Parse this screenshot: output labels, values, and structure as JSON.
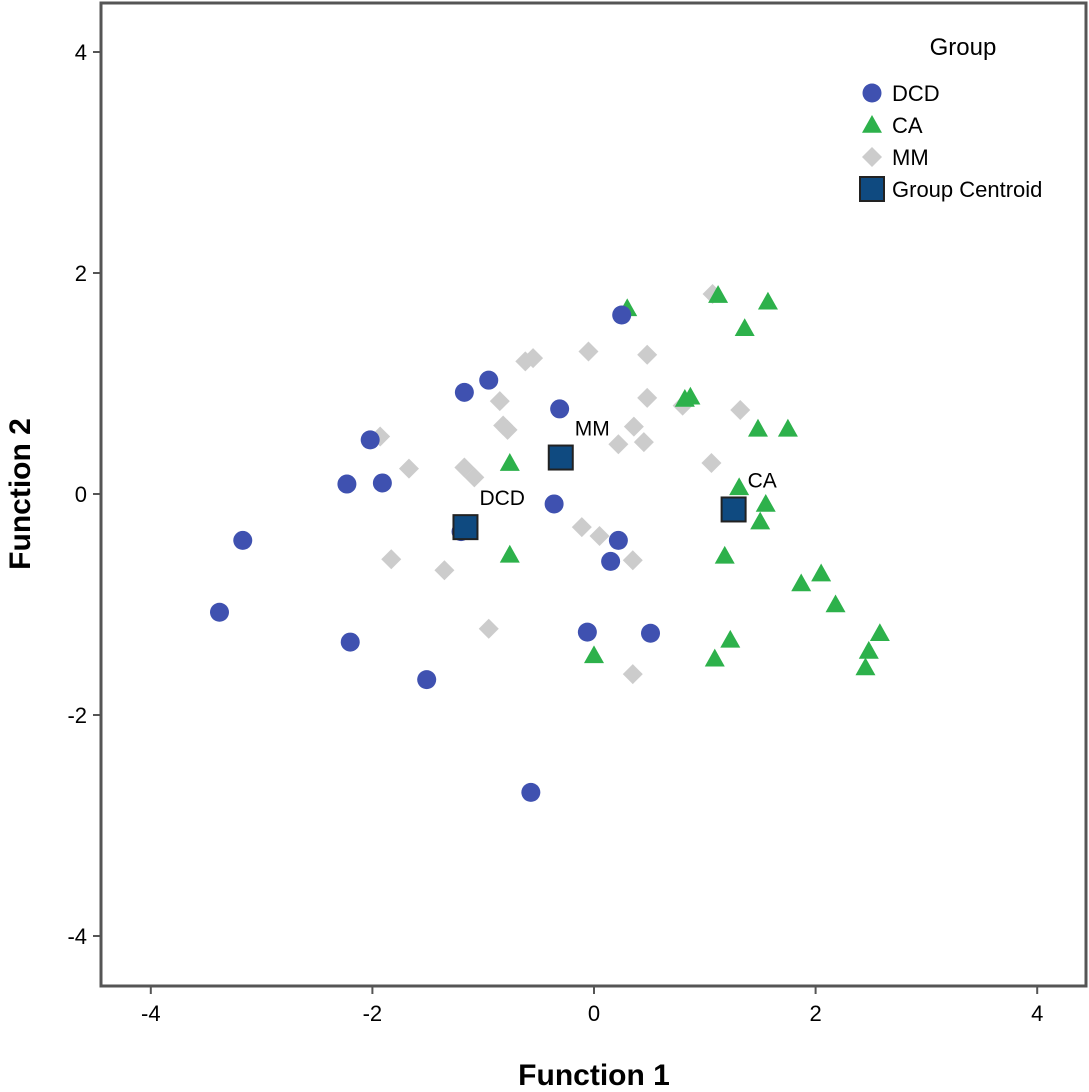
{
  "chart_data": {
    "type": "scatter",
    "xlabel": "Function 1",
    "ylabel": "Function 2",
    "xlim": [
      -4.45,
      4.45
    ],
    "ylim": [
      -4.4,
      4.4
    ],
    "xticks": [
      -4,
      -2,
      0,
      2,
      4
    ],
    "yticks": [
      -4,
      -2,
      0,
      2,
      4
    ],
    "xtick_labels": [
      "-4",
      "-2",
      "0",
      "2",
      "4"
    ],
    "ytick_labels": [
      "-4",
      "-2",
      "0",
      "2",
      "4"
    ],
    "grid": false,
    "legend": {
      "title": "Group",
      "position": "top-right",
      "entries": [
        "DCD",
        "CA",
        "MM",
        "Group Centroid"
      ]
    },
    "colors": {
      "DCD": "#3f51b0",
      "CA": "#2db14b",
      "MM": "#cccccc",
      "centroid": "#0f4a80"
    },
    "series": [
      {
        "name": "DCD",
        "marker": "circle",
        "points": [
          [
            -3.38,
            -1.07
          ],
          [
            -3.17,
            -0.42
          ],
          [
            -2.23,
            0.09
          ],
          [
            -2.2,
            -1.34
          ],
          [
            -2.02,
            0.49
          ],
          [
            -1.91,
            0.1
          ],
          [
            -1.51,
            -1.68
          ],
          [
            -1.17,
            0.92
          ],
          [
            -0.95,
            1.03
          ],
          [
            -1.2,
            -0.34
          ],
          [
            -0.57,
            -2.7
          ],
          [
            -0.31,
            0.77
          ],
          [
            -0.36,
            -0.09
          ],
          [
            -0.06,
            -1.25
          ],
          [
            0.22,
            -0.42
          ],
          [
            0.15,
            -0.61
          ],
          [
            0.25,
            1.62
          ],
          [
            0.51,
            -1.26
          ]
        ]
      },
      {
        "name": "CA",
        "marker": "triangle",
        "points": [
          [
            0.3,
            1.68
          ],
          [
            1.12,
            1.8
          ],
          [
            1.57,
            1.74
          ],
          [
            1.36,
            1.5
          ],
          [
            0.82,
            0.86
          ],
          [
            0.87,
            0.88
          ],
          [
            1.48,
            0.59
          ],
          [
            1.75,
            0.59
          ],
          [
            -0.76,
            0.28
          ],
          [
            1.31,
            0.06
          ],
          [
            1.55,
            -0.09
          ],
          [
            1.5,
            -0.25
          ],
          [
            -0.76,
            -0.55
          ],
          [
            1.18,
            -0.56
          ],
          [
            1.87,
            -0.81
          ],
          [
            2.05,
            -0.72
          ],
          [
            2.18,
            -1.0
          ],
          [
            0.0,
            -1.46
          ],
          [
            1.23,
            -1.32
          ],
          [
            1.09,
            -1.49
          ],
          [
            2.58,
            -1.26
          ],
          [
            2.48,
            -1.42
          ],
          [
            2.45,
            -1.57
          ]
        ]
      },
      {
        "name": "MM",
        "marker": "diamond",
        "points": [
          [
            -1.93,
            0.52
          ],
          [
            -1.67,
            0.23
          ],
          [
            -1.83,
            -0.59
          ],
          [
            -1.35,
            -0.69
          ],
          [
            -1.17,
            0.24
          ],
          [
            -1.08,
            0.15
          ],
          [
            -0.95,
            -1.22
          ],
          [
            -0.85,
            0.84
          ],
          [
            -0.82,
            0.62
          ],
          [
            -0.78,
            0.58
          ],
          [
            -0.62,
            1.2
          ],
          [
            -0.55,
            1.23
          ],
          [
            -0.05,
            1.29
          ],
          [
            0.48,
            1.26
          ],
          [
            0.48,
            0.87
          ],
          [
            0.36,
            0.61
          ],
          [
            0.45,
            0.47
          ],
          [
            0.22,
            0.45
          ],
          [
            -0.11,
            -0.3
          ],
          [
            0.05,
            -0.38
          ],
          [
            0.35,
            -0.6
          ],
          [
            0.35,
            -1.63
          ],
          [
            1.07,
            1.81
          ],
          [
            0.8,
            0.8
          ],
          [
            1.32,
            0.76
          ],
          [
            1.06,
            0.28
          ]
        ]
      }
    ],
    "centroids": [
      {
        "name": "DCD",
        "x": -1.16,
        "y": -0.3
      },
      {
        "name": "MM",
        "x": -0.3,
        "y": 0.33
      },
      {
        "name": "CA",
        "x": 1.26,
        "y": -0.14
      }
    ]
  }
}
